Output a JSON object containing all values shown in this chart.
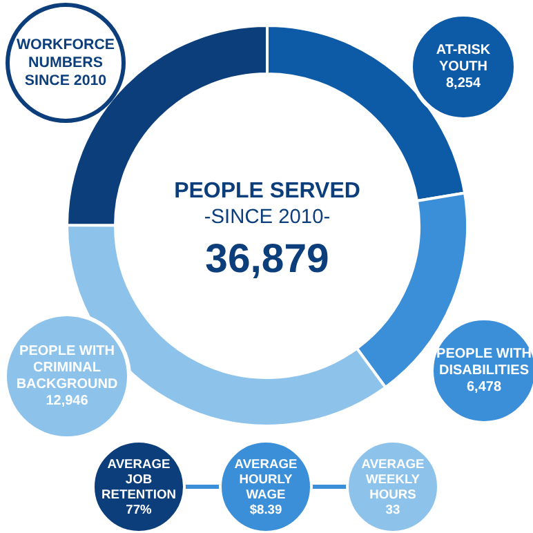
{
  "chart_data": {
    "type": "donut",
    "title": "WORKFORCE\nNUMBERS\nSINCE 2010",
    "categories": [
      "AT-RISK\nYOUTH",
      "PEOPLE WITH\nDISABILITIES",
      "PEOPLE WITH\nCRIMINAL\nBACKGROUND",
      null
    ],
    "values": [
      8254,
      6478,
      12946,
      9201
    ],
    "value_labels": [
      "8,254",
      "6,478",
      "12,946",
      null
    ],
    "colors": [
      "#0d5aa7",
      "#3b8fd8",
      "#8dc3eb",
      "#0b3e7b"
    ],
    "annotations": [
      "PEOPLE SERVED",
      "-SINCE 2010-",
      "36,879",
      "AVERAGE\nJOB\nRETENTION\n77%",
      "AVERAGE\nHOURLY\nWAGE\n$8.39",
      "AVERAGE\nWEEKLY\nHOURS\n33"
    ],
    "data_labels": false
  }
}
